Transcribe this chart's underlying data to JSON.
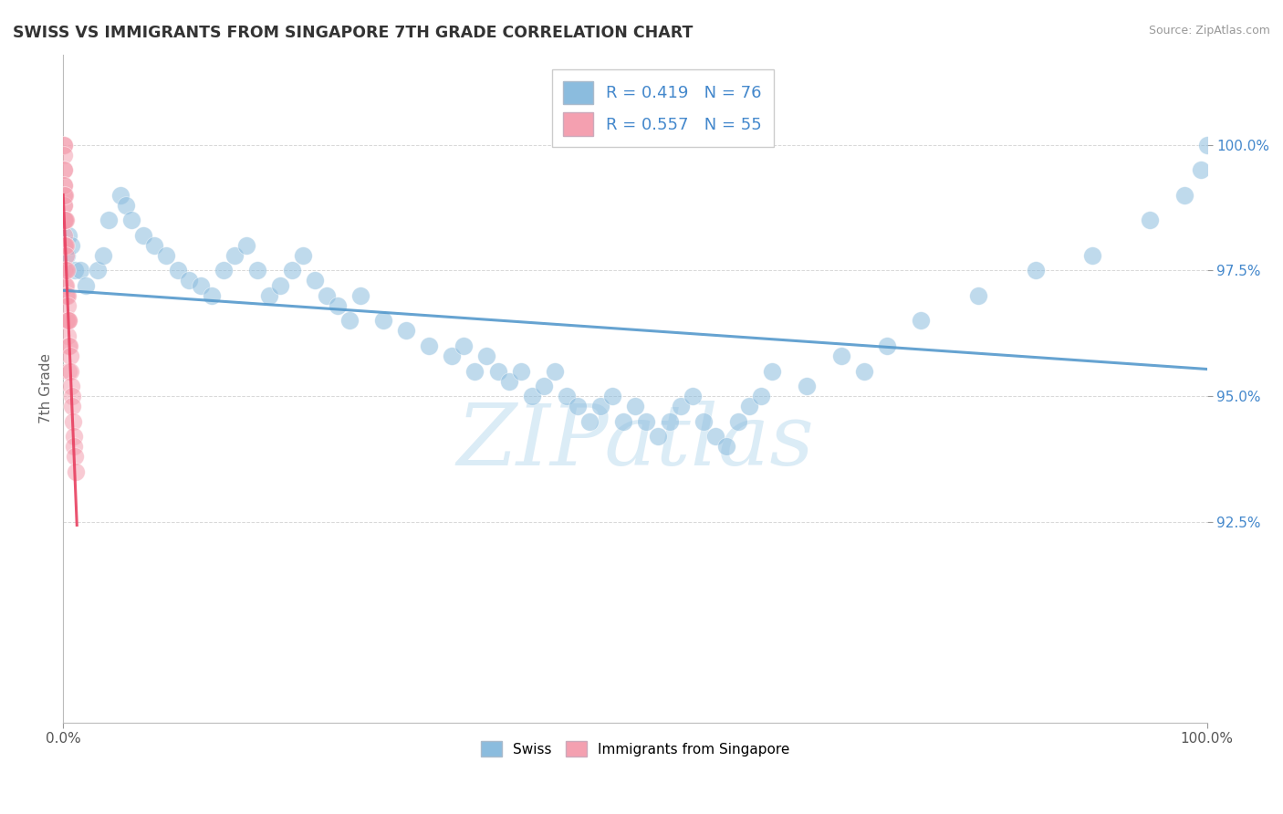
{
  "title": "SWISS VS IMMIGRANTS FROM SINGAPORE 7TH GRADE CORRELATION CHART",
  "source": "Source: ZipAtlas.com",
  "ylabel": "7th Grade",
  "xlim": [
    0.0,
    100.0
  ],
  "ylim": [
    88.5,
    101.8
  ],
  "swiss_r": 0.419,
  "swiss_n": 76,
  "imm_r": 0.557,
  "imm_n": 55,
  "swiss_color": "#8bbcde",
  "imm_color": "#f4a0b0",
  "swiss_trend_color": "#5599cc",
  "imm_trend_color": "#e84060",
  "watermark_color": "#d8eaf5",
  "grid_color": "#d8d8d8",
  "ytick_vals": [
    92.5,
    95.0,
    97.5,
    100.0
  ],
  "ytick_color": "#4488cc",
  "legend_text_color": "#4488cc",
  "background_color": "#ffffff",
  "swiss_x": [
    0.3,
    0.5,
    0.7,
    1.0,
    1.5,
    2.0,
    3.0,
    3.5,
    4.0,
    5.0,
    5.5,
    6.0,
    7.0,
    8.0,
    9.0,
    10.0,
    11.0,
    12.0,
    13.0,
    14.0,
    15.0,
    16.0,
    17.0,
    18.0,
    19.0,
    20.0,
    21.0,
    22.0,
    23.0,
    24.0,
    25.0,
    26.0,
    28.0,
    30.0,
    32.0,
    34.0,
    35.0,
    36.0,
    37.0,
    38.0,
    39.0,
    40.0,
    41.0,
    42.0,
    43.0,
    44.0,
    45.0,
    46.0,
    47.0,
    48.0,
    49.0,
    50.0,
    51.0,
    52.0,
    53.0,
    54.0,
    55.0,
    56.0,
    57.0,
    58.0,
    59.0,
    60.0,
    61.0,
    62.0,
    65.0,
    68.0,
    70.0,
    72.0,
    75.0,
    80.0,
    85.0,
    90.0,
    95.0,
    98.0,
    99.5,
    100.0
  ],
  "swiss_y": [
    97.8,
    98.2,
    98.0,
    97.5,
    97.5,
    97.2,
    97.5,
    97.8,
    98.5,
    99.0,
    98.8,
    98.5,
    98.2,
    98.0,
    97.8,
    97.5,
    97.3,
    97.2,
    97.0,
    97.5,
    97.8,
    98.0,
    97.5,
    97.0,
    97.2,
    97.5,
    97.8,
    97.3,
    97.0,
    96.8,
    96.5,
    97.0,
    96.5,
    96.3,
    96.0,
    95.8,
    96.0,
    95.5,
    95.8,
    95.5,
    95.3,
    95.5,
    95.0,
    95.2,
    95.5,
    95.0,
    94.8,
    94.5,
    94.8,
    95.0,
    94.5,
    94.8,
    94.5,
    94.2,
    94.5,
    94.8,
    95.0,
    94.5,
    94.2,
    94.0,
    94.5,
    94.8,
    95.0,
    95.5,
    95.2,
    95.8,
    95.5,
    96.0,
    96.5,
    97.0,
    97.5,
    97.8,
    98.5,
    99.0,
    99.5,
    100.0
  ],
  "imm_x": [
    0.05,
    0.05,
    0.05,
    0.05,
    0.05,
    0.05,
    0.05,
    0.05,
    0.05,
    0.05,
    0.08,
    0.08,
    0.08,
    0.08,
    0.1,
    0.1,
    0.1,
    0.1,
    0.1,
    0.12,
    0.12,
    0.15,
    0.15,
    0.15,
    0.18,
    0.18,
    0.2,
    0.2,
    0.2,
    0.2,
    0.25,
    0.25,
    0.25,
    0.3,
    0.3,
    0.3,
    0.35,
    0.35,
    0.4,
    0.4,
    0.45,
    0.5,
    0.5,
    0.5,
    0.55,
    0.6,
    0.65,
    0.7,
    0.75,
    0.8,
    0.85,
    0.9,
    0.95,
    1.0,
    1.1
  ],
  "imm_y": [
    100.0,
    100.0,
    99.8,
    99.5,
    99.2,
    99.0,
    98.8,
    98.5,
    98.2,
    98.0,
    99.5,
    99.0,
    98.5,
    98.0,
    99.2,
    98.8,
    98.5,
    98.0,
    97.5,
    98.5,
    98.0,
    99.0,
    98.5,
    97.5,
    98.0,
    97.2,
    98.5,
    98.0,
    97.5,
    97.0,
    97.8,
    97.2,
    96.5,
    97.5,
    97.0,
    96.5,
    97.0,
    96.5,
    96.8,
    96.2,
    96.5,
    96.5,
    96.0,
    95.5,
    96.0,
    95.8,
    95.5,
    95.2,
    95.0,
    94.8,
    94.5,
    94.2,
    94.0,
    93.8,
    93.5
  ]
}
